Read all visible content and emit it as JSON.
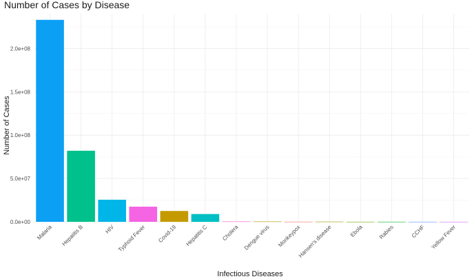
{
  "chart_data": {
    "type": "bar",
    "title": "Number of Cases by Disease",
    "xlabel": "Infectious Diseases",
    "ylabel": "Number of Cases",
    "categories": [
      "Malaria",
      "Hepatitis B",
      "HIV",
      "Typhoid Fever",
      "Covid-19",
      "Hepatitis C",
      "Cholera",
      "Dengue virus",
      "Monkeypox",
      "Hansen's disease",
      "Ebola",
      "Rabies",
      "CCHF",
      "Yellow Fever"
    ],
    "values": [
      233000000,
      82000000,
      25500000,
      17500000,
      12500000,
      9000000,
      400000,
      390000,
      100000,
      200000,
      28600,
      59000,
      10000,
      5000
    ],
    "colors": [
      "#0ca0f5",
      "#00c08b",
      "#00b5e8",
      "#f564e3",
      "#c49a00",
      "#00bfc4",
      "#fb61d7",
      "#b79f00",
      "#f8766d",
      "#a3a500",
      "#7cae00",
      "#00ba38",
      "#619cff",
      "#db72fb"
    ],
    "ylim": [
      0,
      240000000
    ],
    "yticks": [
      0,
      50000000,
      100000000,
      150000000,
      200000000
    ],
    "ytick_labels": [
      "0.0e+00",
      "5.0e+07",
      "1.0e+08",
      "1.5e+08",
      "2.0e+08"
    ],
    "grid": true
  }
}
